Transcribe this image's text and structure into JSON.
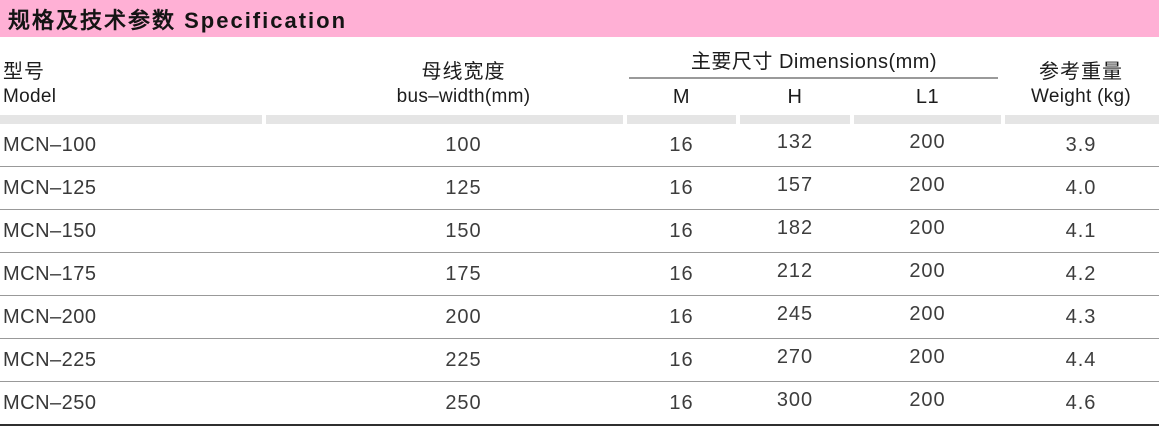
{
  "title": "规格及技术参数 Specification",
  "table": {
    "headers": {
      "model_zh": "型号",
      "model_en": "Model",
      "bus_width_zh": "母线宽度",
      "bus_width_en": "bus–width(mm)",
      "dimensions_group": "主要尺寸 Dimensions(mm)",
      "dim_m": "M",
      "dim_h": "H",
      "dim_l1": "L1",
      "weight_zh": "参考重量",
      "weight_en": "Weight (kg)"
    },
    "rows": [
      {
        "model": "MCN–100",
        "bus_width": "100",
        "m": "16",
        "h": "132",
        "l1": "200",
        "weight": "3.9"
      },
      {
        "model": "MCN–125",
        "bus_width": "125",
        "m": "16",
        "h": "157",
        "l1": "200",
        "weight": "4.0"
      },
      {
        "model": "MCN–150",
        "bus_width": "150",
        "m": "16",
        "h": "182",
        "l1": "200",
        "weight": "4.1"
      },
      {
        "model": "MCN–175",
        "bus_width": "175",
        "m": "16",
        "h": "212",
        "l1": "200",
        "weight": "4.2"
      },
      {
        "model": "MCN–200",
        "bus_width": "200",
        "m": "16",
        "h": "245",
        "l1": "200",
        "weight": "4.3"
      },
      {
        "model": "MCN–225",
        "bus_width": "225",
        "m": "16",
        "h": "270",
        "l1": "200",
        "weight": "4.4"
      },
      {
        "model": "MCN–250",
        "bus_width": "250",
        "m": "16",
        "h": "300",
        "l1": "200",
        "weight": "4.6"
      }
    ]
  },
  "colors": {
    "title_bg": "#ffb0d5",
    "separator_bg": "#e5e5e5",
    "row_divider": "#999999",
    "rule_gray": "#9a9a9a",
    "bottom_rule": "#2f2f2f"
  }
}
